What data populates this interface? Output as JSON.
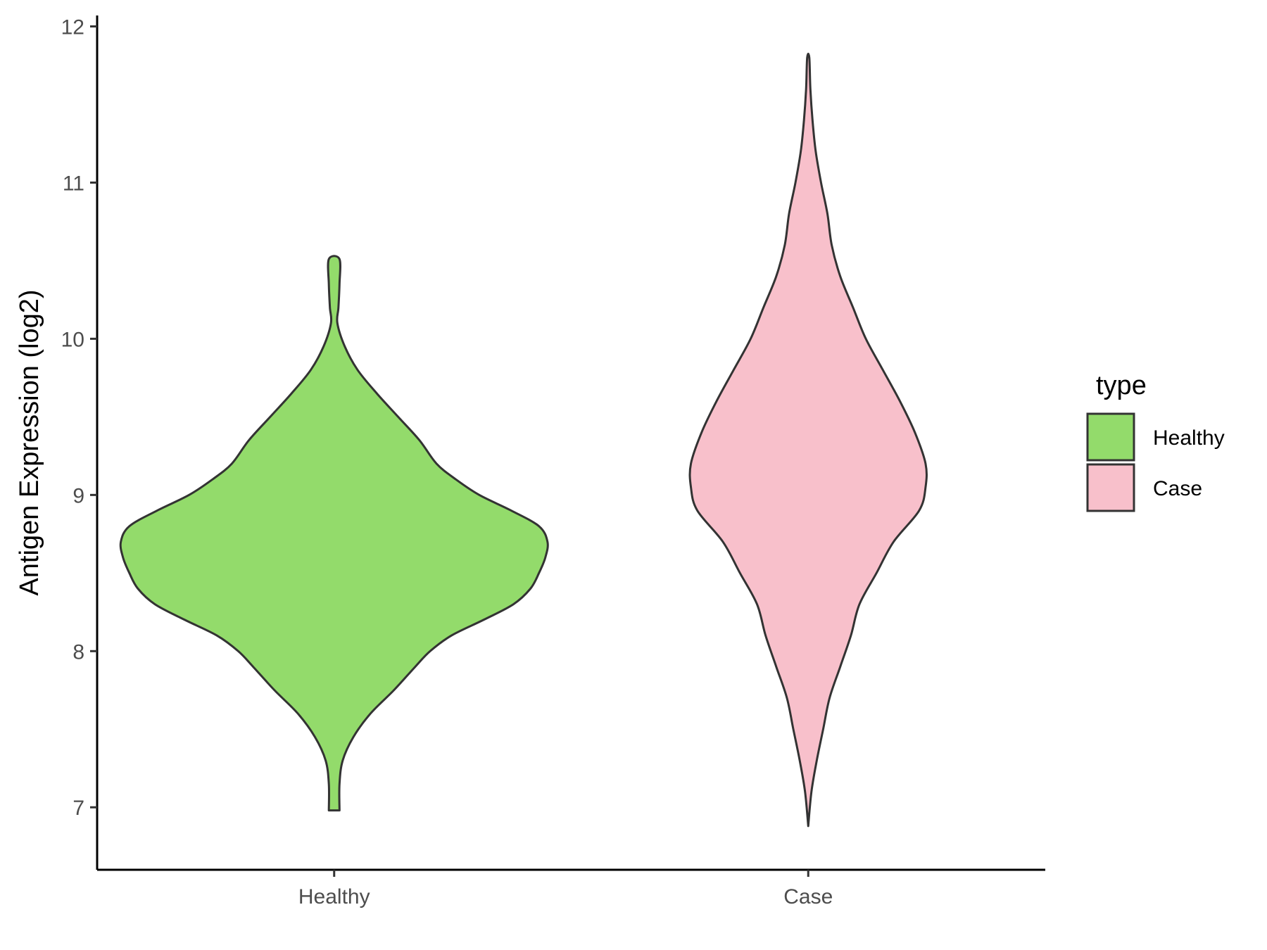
{
  "chart_data": {
    "type": "violin",
    "title": "",
    "xlabel": "",
    "ylabel": "Antigen Expression (log2)",
    "ylim": [
      6.6,
      12.07
    ],
    "yticks": [
      7,
      8,
      9,
      10,
      11,
      12
    ],
    "categories": [
      "Healthy",
      "Case"
    ],
    "grid": false,
    "legend": {
      "title": "type",
      "position": "right",
      "entries": [
        {
          "label": "Healthy",
          "color": "#93DB6B"
        },
        {
          "label": "Case",
          "color": "#F8C0CB"
        }
      ]
    },
    "series": [
      {
        "category": "Healthy",
        "color": "#93DB6B",
        "min": 6.98,
        "max": 10.51,
        "density": [
          [
            6.98,
            0.025
          ],
          [
            7.15,
            0.025
          ],
          [
            7.3,
            0.04
          ],
          [
            7.45,
            0.09
          ],
          [
            7.6,
            0.17
          ],
          [
            7.75,
            0.28
          ],
          [
            7.9,
            0.38
          ],
          [
            8.0,
            0.45
          ],
          [
            8.1,
            0.55
          ],
          [
            8.2,
            0.7
          ],
          [
            8.3,
            0.84
          ],
          [
            8.4,
            0.92
          ],
          [
            8.5,
            0.96
          ],
          [
            8.6,
            0.99
          ],
          [
            8.7,
            1.0
          ],
          [
            8.8,
            0.96
          ],
          [
            8.9,
            0.83
          ],
          [
            9.0,
            0.68
          ],
          [
            9.1,
            0.57
          ],
          [
            9.2,
            0.48
          ],
          [
            9.35,
            0.4
          ],
          [
            9.5,
            0.3
          ],
          [
            9.65,
            0.2
          ],
          [
            9.8,
            0.11
          ],
          [
            9.95,
            0.05
          ],
          [
            10.1,
            0.015
          ],
          [
            10.2,
            0.02
          ],
          [
            10.35,
            0.025
          ],
          [
            10.51,
            0.025
          ]
        ]
      },
      {
        "category": "Case",
        "color": "#F8C0CB",
        "min": 6.88,
        "max": 11.8,
        "density": [
          [
            6.88,
            0.0
          ],
          [
            7.1,
            0.015
          ],
          [
            7.3,
            0.04
          ],
          [
            7.5,
            0.07
          ],
          [
            7.7,
            0.1
          ],
          [
            7.9,
            0.15
          ],
          [
            8.1,
            0.2
          ],
          [
            8.3,
            0.24
          ],
          [
            8.5,
            0.32
          ],
          [
            8.7,
            0.4
          ],
          [
            8.9,
            0.52
          ],
          [
            9.05,
            0.55
          ],
          [
            9.2,
            0.55
          ],
          [
            9.4,
            0.5
          ],
          [
            9.6,
            0.43
          ],
          [
            9.8,
            0.35
          ],
          [
            10.0,
            0.27
          ],
          [
            10.2,
            0.21
          ],
          [
            10.4,
            0.15
          ],
          [
            10.6,
            0.11
          ],
          [
            10.8,
            0.09
          ],
          [
            11.0,
            0.06
          ],
          [
            11.2,
            0.035
          ],
          [
            11.4,
            0.02
          ],
          [
            11.6,
            0.01
          ],
          [
            11.8,
            0.005
          ]
        ]
      }
    ]
  }
}
